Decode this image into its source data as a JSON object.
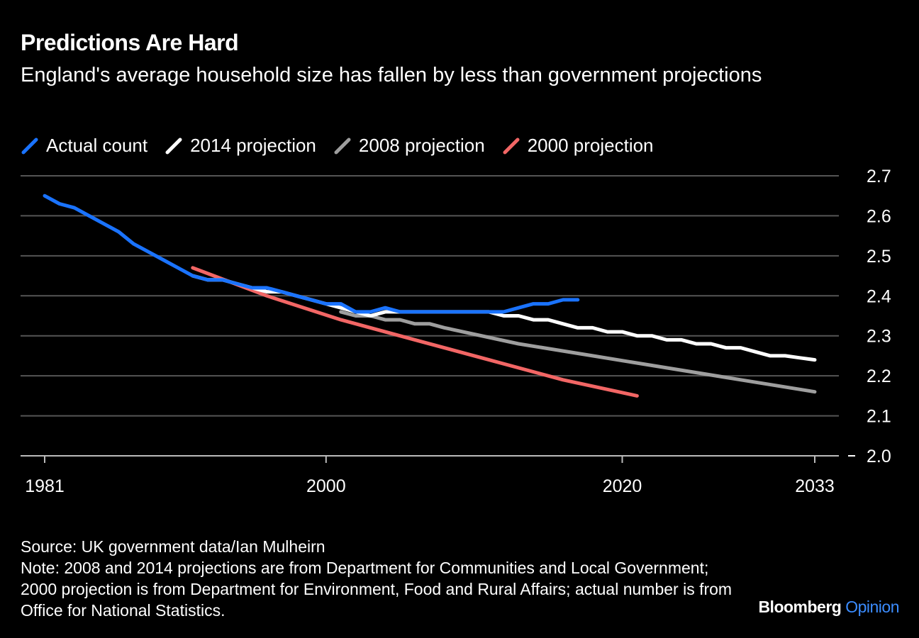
{
  "title": "Predictions Are Hard",
  "subtitle": "England's average household size has fallen by less than government projections",
  "footer": {
    "source": "Source: UK government data/Ian Mulheirn",
    "note": "Note: 2008 and 2014 projections are from Department for Communities and Local Government; 2000 projection is from Department for Environment, Food and Rural Affairs; actual number is from Office for National Statistics."
  },
  "logo": {
    "brand": "Bloomberg",
    "section": "Opinion"
  },
  "chart_data": {
    "type": "line",
    "title": "Predictions Are Hard",
    "xlim": [
      1981,
      2033
    ],
    "ylim": [
      2.0,
      2.7
    ],
    "x_ticks": [
      "1981",
      "2000",
      "2020",
      "2033"
    ],
    "y_ticks": [
      "2.0",
      "2.1",
      "2.2",
      "2.3",
      "2.4",
      "2.5",
      "2.6",
      "2.7"
    ],
    "y_axis_side": "right",
    "grid": true,
    "legend_position": "top-left",
    "series": [
      {
        "name": "2008 projection",
        "color": "#9e9e9e",
        "x": [
          2001,
          2002,
          2003,
          2004,
          2005,
          2006,
          2007,
          2008,
          2013,
          2018,
          2023,
          2028,
          2033
        ],
        "y": [
          2.36,
          2.35,
          2.35,
          2.34,
          2.34,
          2.33,
          2.33,
          2.32,
          2.28,
          2.25,
          2.22,
          2.19,
          2.16
        ]
      },
      {
        "name": "2000 projection",
        "color": "#f26665",
        "x": [
          1991,
          1996,
          2001,
          2006,
          2011,
          2016,
          2021
        ],
        "y": [
          2.47,
          2.4,
          2.34,
          2.29,
          2.24,
          2.19,
          2.15
        ]
      },
      {
        "name": "2014 projection",
        "color": "#ffffff",
        "x": [
          1991,
          1992,
          1993,
          1994,
          1995,
          1996,
          1997,
          1998,
          1999,
          2000,
          2001,
          2002,
          2003,
          2004,
          2005,
          2006,
          2007,
          2008,
          2009,
          2010,
          2011,
          2012,
          2013,
          2014,
          2015,
          2016,
          2017,
          2018,
          2019,
          2020,
          2021,
          2022,
          2023,
          2024,
          2025,
          2026,
          2027,
          2028,
          2029,
          2030,
          2031,
          2032,
          2033
        ],
        "y": [
          2.45,
          2.44,
          2.44,
          2.43,
          2.42,
          2.41,
          2.41,
          2.4,
          2.39,
          2.38,
          2.37,
          2.36,
          2.35,
          2.36,
          2.36,
          2.36,
          2.36,
          2.36,
          2.36,
          2.36,
          2.36,
          2.35,
          2.35,
          2.34,
          2.34,
          2.33,
          2.32,
          2.32,
          2.31,
          2.31,
          2.3,
          2.3,
          2.29,
          2.29,
          2.28,
          2.28,
          2.27,
          2.27,
          2.26,
          2.25,
          2.25,
          2.245,
          2.24
        ]
      },
      {
        "name": "Actual count",
        "color": "#1a73ff",
        "x": [
          1981,
          1982,
          1983,
          1984,
          1985,
          1986,
          1987,
          1988,
          1989,
          1990,
          1991,
          1992,
          1993,
          1994,
          1995,
          1996,
          1997,
          1998,
          1999,
          2000,
          2001,
          2002,
          2003,
          2004,
          2005,
          2006,
          2007,
          2008,
          2009,
          2010,
          2011,
          2012,
          2013,
          2014,
          2015,
          2016,
          2017
        ],
        "y": [
          2.65,
          2.63,
          2.62,
          2.6,
          2.58,
          2.56,
          2.53,
          2.51,
          2.49,
          2.47,
          2.45,
          2.44,
          2.44,
          2.43,
          2.42,
          2.42,
          2.41,
          2.4,
          2.39,
          2.38,
          2.38,
          2.36,
          2.36,
          2.37,
          2.36,
          2.36,
          2.36,
          2.36,
          2.36,
          2.36,
          2.36,
          2.36,
          2.37,
          2.38,
          2.38,
          2.39,
          2.39
        ]
      }
    ],
    "legend_order": [
      "Actual count",
      "2014 projection",
      "2008 projection",
      "2000 projection"
    ]
  }
}
